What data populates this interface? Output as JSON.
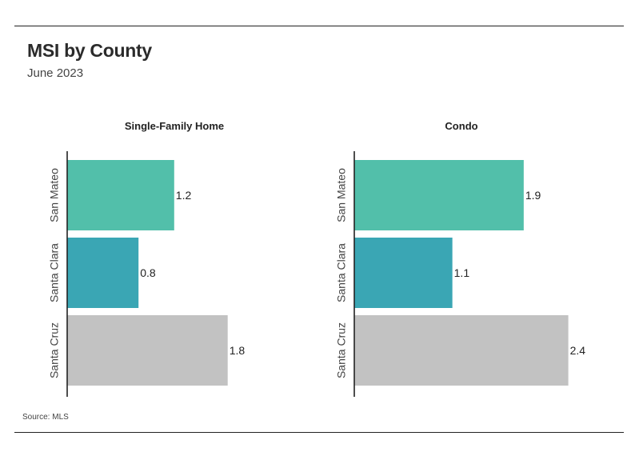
{
  "header": {
    "title": "MSI by County",
    "subtitle": "June 2023"
  },
  "footer": {
    "source": "Source: MLS"
  },
  "colors": {
    "San Mateo": "#52BFAA",
    "Santa Clara": "#3AA6B4",
    "Santa Cruz": "#C2C2C2",
    "axis": "#222222"
  },
  "chart_data": [
    {
      "type": "bar",
      "orientation": "horizontal",
      "title": "Single-Family Home",
      "categories": [
        "San Mateo",
        "Santa Clara",
        "Santa Cruz"
      ],
      "values": [
        1.2,
        0.8,
        1.8
      ],
      "data_labels": [
        "1.2",
        "0.8",
        "1.8"
      ],
      "xlim": [
        0,
        2.4
      ],
      "grid": false,
      "legend": "none"
    },
    {
      "type": "bar",
      "orientation": "horizontal",
      "title": "Condo",
      "categories": [
        "San Mateo",
        "Santa Clara",
        "Santa Cruz"
      ],
      "values": [
        1.9,
        1.1,
        2.4
      ],
      "data_labels": [
        "1.9",
        "1.1",
        "2.4"
      ],
      "xlim": [
        0,
        2.4
      ],
      "grid": false,
      "legend": "none"
    }
  ]
}
